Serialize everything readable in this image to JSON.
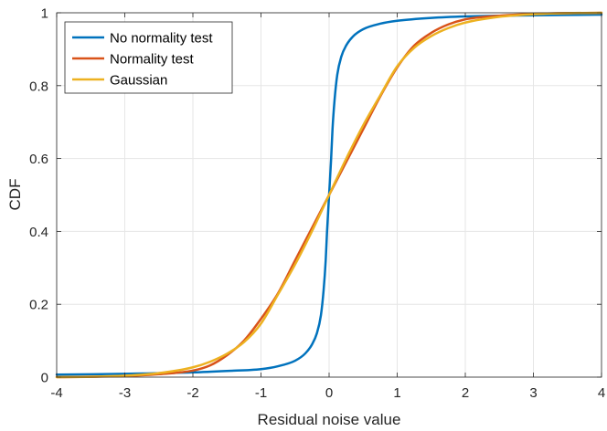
{
  "chart_data": {
    "type": "line",
    "title": "",
    "xlabel": "Residual noise value",
    "ylabel": "CDF",
    "xlim": [
      -4,
      4
    ],
    "ylim": [
      0,
      1
    ],
    "xticks": [
      -4,
      -3,
      -2,
      -1,
      0,
      1,
      2,
      3,
      4
    ],
    "yticks": [
      0,
      0.2,
      0.4,
      0.6,
      0.8,
      1
    ],
    "xtick_labels": [
      "-4",
      "-3",
      "-2",
      "-1",
      "0",
      "1",
      "2",
      "3",
      "4"
    ],
    "ytick_labels": [
      "0",
      "0.2",
      "0.4",
      "0.6",
      "0.8",
      "1"
    ],
    "grid": true,
    "legend_position": "top-left",
    "series": [
      {
        "name": "No normality test",
        "color": "#0072BD",
        "x": [
          -4,
          -3,
          -2,
          -1.5,
          -1,
          -0.75,
          -0.5,
          -0.35,
          -0.25,
          -0.18,
          -0.12,
          -0.08,
          -0.05,
          -0.03,
          -0.015,
          0,
          0.015,
          0.03,
          0.05,
          0.08,
          0.12,
          0.18,
          0.25,
          0.35,
          0.5,
          0.75,
          1,
          1.5,
          2,
          3,
          4
        ],
        "values": [
          0.007,
          0.009,
          0.013,
          0.017,
          0.022,
          0.03,
          0.045,
          0.065,
          0.09,
          0.12,
          0.17,
          0.24,
          0.32,
          0.4,
          0.45,
          0.5,
          0.55,
          0.6,
          0.68,
          0.76,
          0.83,
          0.88,
          0.91,
          0.935,
          0.955,
          0.97,
          0.978,
          0.986,
          0.99,
          0.993,
          0.995
        ]
      },
      {
        "name": "Normality test",
        "color": "#D95319",
        "x": [
          -4,
          -3,
          -2.5,
          -2,
          -1.75,
          -1.5,
          -1.25,
          -1,
          -0.75,
          -0.5,
          -0.25,
          0,
          0.25,
          0.5,
          0.75,
          1,
          1.25,
          1.5,
          1.75,
          2,
          2.5,
          3,
          4
        ],
        "values": [
          0.0,
          0.003,
          0.008,
          0.018,
          0.032,
          0.06,
          0.1,
          0.16,
          0.23,
          0.32,
          0.41,
          0.5,
          0.59,
          0.68,
          0.77,
          0.85,
          0.91,
          0.945,
          0.968,
          0.982,
          0.992,
          0.997,
          1.0
        ]
      },
      {
        "name": "Gaussian",
        "color": "#EDB120",
        "x": [
          -4,
          -3.5,
          -3,
          -2.5,
          -2,
          -1.75,
          -1.5,
          -1.25,
          -1,
          -0.75,
          -0.5,
          -0.25,
          0,
          0.25,
          0.5,
          0.75,
          1,
          1.25,
          1.5,
          1.75,
          2,
          2.5,
          3,
          3.5,
          4
        ],
        "values": [
          0.0,
          0.001,
          0.004,
          0.011,
          0.027,
          0.042,
          0.064,
          0.096,
          0.147,
          0.227,
          0.309,
          0.401,
          0.5,
          0.599,
          0.691,
          0.773,
          0.853,
          0.904,
          0.936,
          0.958,
          0.973,
          0.989,
          0.996,
          0.999,
          1.0
        ]
      }
    ]
  }
}
